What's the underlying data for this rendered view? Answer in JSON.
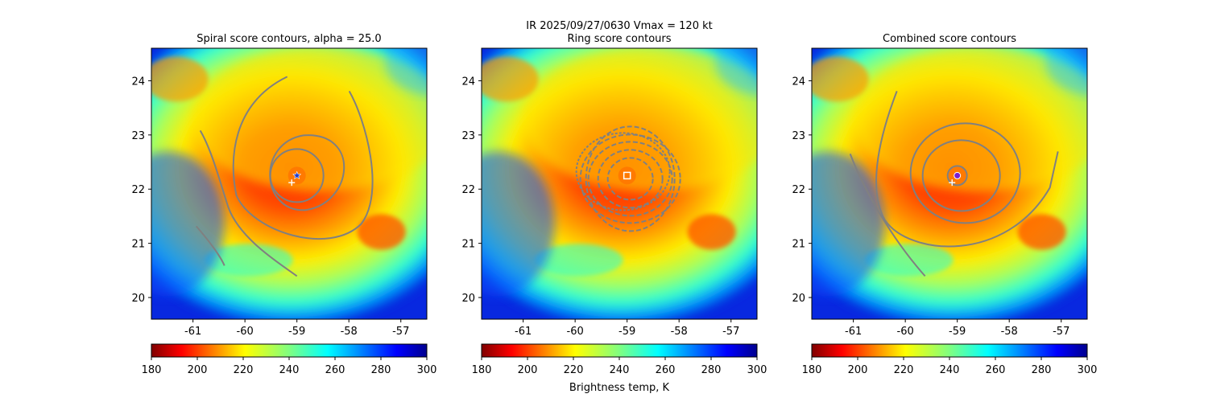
{
  "suptitle": "IR  2025/09/27/0630    Vmax = 120 kt",
  "colorbar_label": "Brightness temp, K",
  "colormap": "jet_r",
  "contour_color": "#808080",
  "chart_data": [
    {
      "type": "heatmap",
      "title": "Spiral score contours, alpha = 25.0",
      "xlim": [
        -61.8,
        -56.5
      ],
      "ylim": [
        19.6,
        24.6
      ],
      "xticks": [
        "-61",
        "-60",
        "-59",
        "-58",
        "-57"
      ],
      "xtick_values": [
        -61,
        -60,
        -59,
        -58,
        -57
      ],
      "yticks": [
        "20",
        "21",
        "22",
        "23",
        "24"
      ],
      "ytick_values": [
        20,
        21,
        22,
        23,
        24
      ],
      "colorbar": {
        "range": [
          180,
          300
        ],
        "ticks": [
          "180",
          "200",
          "220",
          "240",
          "260",
          "280",
          "300"
        ]
      },
      "storm_center": {
        "lon": -59.0,
        "lat": 22.25
      },
      "first_guess": {
        "lon": -59.1,
        "lat": 22.12
      },
      "center_marker": "blue star"
    },
    {
      "type": "heatmap",
      "title": "Ring score contours",
      "xlim": [
        -61.8,
        -56.5
      ],
      "ylim": [
        19.6,
        24.6
      ],
      "xticks": [
        "-61",
        "-60",
        "-59",
        "-58",
        "-57"
      ],
      "xtick_values": [
        -61,
        -60,
        -59,
        -58,
        -57
      ],
      "yticks": [
        "20",
        "21",
        "22",
        "23",
        "24"
      ],
      "ytick_values": [
        20,
        21,
        22,
        23,
        24
      ],
      "colorbar": {
        "range": [
          180,
          300
        ],
        "ticks": [
          "180",
          "200",
          "220",
          "240",
          "260",
          "280",
          "300"
        ]
      },
      "storm_center": {
        "lon": -59.0,
        "lat": 22.25
      },
      "center_marker": "white square"
    },
    {
      "type": "heatmap",
      "title": "Combined score contours",
      "xlim": [
        -61.8,
        -56.5
      ],
      "ylim": [
        19.6,
        24.6
      ],
      "xticks": [
        "-61",
        "-60",
        "-59",
        "-58",
        "-57"
      ],
      "xtick_values": [
        -61,
        -60,
        -59,
        -58,
        -57
      ],
      "yticks": [
        "20",
        "21",
        "22",
        "23",
        "24"
      ],
      "ytick_values": [
        20,
        21,
        22,
        23,
        24
      ],
      "colorbar": {
        "range": [
          180,
          300
        ],
        "ticks": [
          "180",
          "200",
          "220",
          "240",
          "260",
          "280",
          "300"
        ]
      },
      "storm_center": {
        "lon": -59.0,
        "lat": 22.25
      },
      "first_guess": {
        "lon": -59.1,
        "lat": 22.12
      },
      "center_marker": "purple circle"
    }
  ]
}
